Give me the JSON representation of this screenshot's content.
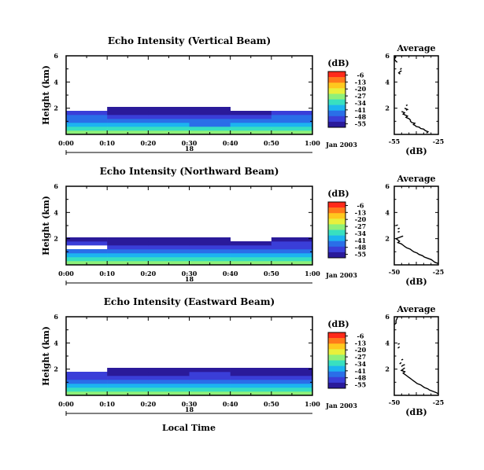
{
  "figure": {
    "date_label": "Jan 2003",
    "day_label": "18",
    "xlabel_bottom": "Local Time",
    "colorbar_unit": "(dB)",
    "average_title": "Average",
    "average_xlabel": "(dB)"
  },
  "colorscale": {
    "ticks": [
      "-6",
      "-13",
      "-20",
      "-27",
      "-34",
      "-41",
      "-48",
      "-55"
    ],
    "colors": [
      "#ff2a1a",
      "#ff7a1a",
      "#ffc81e",
      "#e8f03c",
      "#8ef07a",
      "#38e0c0",
      "#1cb4f0",
      "#2a6ee8",
      "#3a3ed8",
      "#2a1a9a"
    ]
  },
  "chart_data": [
    {
      "type": "heatmap",
      "title": "Echo Intensity (Vertical Beam)",
      "ylabel": "Height (km)",
      "xlabel": "",
      "x_ticks": [
        "0:00",
        "0:10",
        "0:20",
        "0:30",
        "0:40",
        "0:50",
        "1:00"
      ],
      "y_ticks": [
        "2",
        "4",
        "6"
      ],
      "xlim": [
        0,
        60
      ],
      "ylim": [
        0,
        6
      ],
      "clim": [
        -55,
        -6
      ],
      "heights_km": [
        0.15,
        0.45,
        0.75,
        1.05,
        1.35,
        1.65,
        1.95
      ],
      "time_segments": [
        0,
        10,
        20,
        30,
        40,
        50,
        60
      ],
      "values_db": [
        [
          -30,
          -28,
          -29,
          -30,
          -28,
          -27
        ],
        [
          -34,
          -33,
          -34,
          -35,
          -33,
          -34
        ],
        [
          -38,
          -40,
          -39,
          -41,
          -38,
          -37
        ],
        [
          -42,
          -44,
          -43,
          -45,
          -42,
          -43
        ],
        [
          -45,
          -48,
          -47,
          -49,
          -47,
          -44
        ],
        [
          -50,
          -52,
          -53,
          -54,
          -52,
          -49
        ],
        [
          null,
          -52,
          -54,
          -54,
          null,
          null
        ]
      ],
      "average": {
        "xlim": [
          -55,
          -25
        ],
        "x_ticks": [
          "-55",
          "-25"
        ],
        "y_ticks": [
          "2",
          "4",
          "6"
        ],
        "segments": [
          [
            [
              -33,
              0.1
            ],
            [
              -32,
              0.2
            ],
            [
              -34,
              0.3
            ],
            [
              -35,
              0.4
            ],
            [
              -37,
              0.45
            ],
            [
              -38,
              0.55
            ],
            [
              -40,
              0.6
            ],
            [
              -41,
              0.7
            ],
            [
              -42,
              0.75
            ],
            [
              -41,
              0.85
            ],
            [
              -43,
              0.9
            ],
            [
              -44,
              1.0
            ],
            [
              -44,
              1.1
            ],
            [
              -45,
              1.2
            ],
            [
              -46,
              1.25
            ],
            [
              -47,
              1.3
            ],
            [
              -46,
              1.4
            ],
            [
              -48,
              1.5
            ],
            [
              -49,
              1.55
            ],
            [
              -48,
              1.65
            ],
            [
              -50,
              1.75
            ]
          ],
          [
            [
              -47,
              1.85
            ],
            [
              -46,
              1.9
            ],
            [
              -48,
              2.0
            ]
          ],
          [
            [
              -47,
              2.2
            ],
            [
              -46,
              2.25
            ]
          ],
          [
            [
              -51,
              4.6
            ],
            [
              -52,
              4.7
            ],
            [
              -51,
              4.8
            ],
            [
              -50,
              4.85
            ]
          ],
          [
            [
              -51,
              4.95
            ],
            [
              -50,
              5.05
            ]
          ],
          [
            [
              -53,
              5.5
            ],
            [
              -54,
              5.6
            ],
            [
              -55,
              5.75
            ],
            [
              -54,
              5.9
            ],
            [
              -55,
              6.0
            ]
          ]
        ]
      }
    },
    {
      "type": "heatmap",
      "title": "Echo Intensity (Northward Beam)",
      "ylabel": "Height (km)",
      "xlabel": "",
      "x_ticks": [
        "0:00",
        "0:10",
        "0:20",
        "0:30",
        "0:40",
        "0:50",
        "1:00"
      ],
      "y_ticks": [
        "2",
        "4",
        "6"
      ],
      "xlim": [
        0,
        60
      ],
      "ylim": [
        0,
        6
      ],
      "clim": [
        -55,
        -6
      ],
      "heights_km": [
        0.15,
        0.45,
        0.75,
        1.05,
        1.35,
        1.65,
        1.95
      ],
      "time_segments": [
        0,
        10,
        20,
        30,
        40,
        50,
        60
      ],
      "values_db": [
        [
          -28,
          -27,
          -29,
          -28,
          -27,
          -26
        ],
        [
          -33,
          -32,
          -34,
          -33,
          -32,
          -33
        ],
        [
          -38,
          -39,
          -40,
          -39,
          -38,
          -37
        ],
        [
          -42,
          -44,
          -45,
          -44,
          -43,
          -42
        ],
        [
          null,
          -49,
          -48,
          -49,
          -47,
          -47
        ],
        [
          -50,
          -53,
          -53,
          -52,
          -52,
          -50
        ],
        [
          -52,
          -54,
          -54,
          -52,
          null,
          -52
        ]
      ],
      "average": {
        "xlim": [
          -50,
          -25
        ],
        "x_ticks": [
          "-50",
          "-25"
        ],
        "y_ticks": [
          "2",
          "4",
          "6"
        ],
        "segments": [
          [
            [
              -25,
              0.1
            ],
            [
              -27,
              0.2
            ],
            [
              -28,
              0.3
            ],
            [
              -29,
              0.4
            ],
            [
              -31,
              0.5
            ],
            [
              -33,
              0.6
            ],
            [
              -34,
              0.7
            ],
            [
              -36,
              0.8
            ],
            [
              -37,
              0.9
            ],
            [
              -39,
              1.0
            ],
            [
              -40,
              1.1
            ],
            [
              -41,
              1.2
            ],
            [
              -43,
              1.3
            ],
            [
              -44,
              1.4
            ],
            [
              -45,
              1.5
            ],
            [
              -46,
              1.6
            ],
            [
              -48,
              1.7
            ],
            [
              -47,
              1.8
            ],
            [
              -48,
              1.9
            ],
            [
              -49,
              2.0
            ],
            [
              -47,
              2.1
            ],
            [
              -45,
              2.2
            ]
          ],
          [
            [
              -48,
              2.5
            ],
            [
              -47,
              2.55
            ]
          ],
          [
            [
              -48,
              2.75
            ],
            [
              -47,
              2.8
            ]
          ],
          [
            [
              -49,
              3.0
            ],
            [
              -48,
              3.05
            ]
          ]
        ]
      }
    },
    {
      "type": "heatmap",
      "title": "Echo Intensity (Eastward Beam)",
      "ylabel": "Height (km)",
      "xlabel": "Local Time",
      "x_ticks": [
        "0:00",
        "0:10",
        "0:20",
        "0:30",
        "0:40",
        "0:50",
        "1:00"
      ],
      "y_ticks": [
        "2",
        "4",
        "6"
      ],
      "xlim": [
        0,
        60
      ],
      "ylim": [
        0,
        6
      ],
      "clim": [
        -55,
        -6
      ],
      "heights_km": [
        0.15,
        0.45,
        0.75,
        1.05,
        1.35,
        1.65,
        1.95
      ],
      "time_segments": [
        0,
        10,
        20,
        30,
        40,
        50,
        60
      ],
      "values_db": [
        [
          -28,
          -29,
          -30,
          -28,
          -29,
          -28
        ],
        [
          -33,
          -34,
          -35,
          -32,
          -34,
          -33
        ],
        [
          -38,
          -40,
          -39,
          -38,
          -40,
          -38
        ],
        [
          -42,
          -45,
          -44,
          -43,
          -44,
          -43
        ],
        [
          -46,
          -48,
          -47,
          -46,
          -48,
          -47
        ],
        [
          -49,
          -52,
          -51,
          -50,
          -52,
          -51
        ],
        [
          null,
          -54,
          -53,
          -52,
          -54,
          -53
        ]
      ],
      "average": {
        "xlim": [
          -50,
          -25
        ],
        "x_ticks": [
          "-50",
          "-25"
        ],
        "y_ticks": [
          "2",
          "4",
          "6"
        ],
        "segments": [
          [
            [
              -25,
              0.1
            ],
            [
              -26,
              0.2
            ],
            [
              -28,
              0.3
            ],
            [
              -30,
              0.4
            ],
            [
              -31,
              0.5
            ],
            [
              -33,
              0.6
            ],
            [
              -34,
              0.7
            ],
            [
              -35,
              0.8
            ],
            [
              -37,
              0.9
            ],
            [
              -38,
              1.0
            ],
            [
              -39,
              1.1
            ],
            [
              -40,
              1.2
            ],
            [
              -41,
              1.3
            ],
            [
              -42,
              1.4
            ],
            [
              -43,
              1.5
            ],
            [
              -44,
              1.6
            ],
            [
              -45,
              1.7
            ],
            [
              -44,
              1.8
            ],
            [
              -46,
              1.9
            ],
            [
              -45,
              2.0
            ],
            [
              -44,
              2.1
            ]
          ],
          [
            [
              -46,
              2.2
            ],
            [
              -45,
              2.3
            ],
            [
              -44,
              2.35
            ]
          ],
          [
            [
              -47,
              2.4
            ],
            [
              -46,
              2.5
            ]
          ],
          [
            [
              -46,
              2.7
            ],
            [
              -45,
              2.75
            ]
          ],
          [
            [
              -48,
              3.6
            ],
            [
              -47,
              3.7
            ]
          ],
          [
            [
              -48,
              3.9
            ],
            [
              -47,
              3.95
            ]
          ],
          [
            [
              -50,
              5.4
            ],
            [
              -49,
              5.5
            ],
            [
              -49,
              5.7
            ],
            [
              -48,
              6.0
            ]
          ]
        ]
      }
    }
  ]
}
